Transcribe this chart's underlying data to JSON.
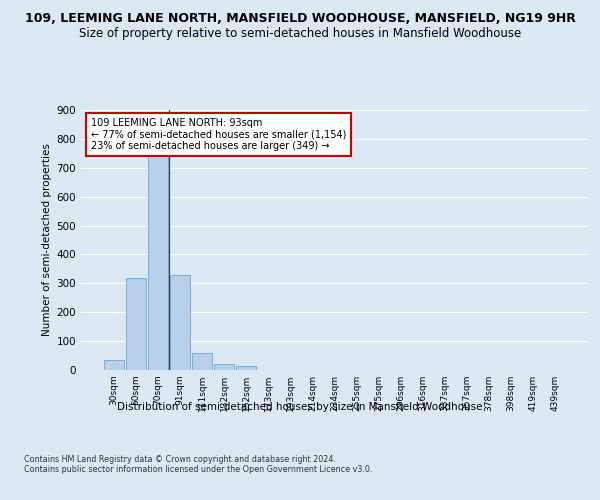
{
  "title_line1": "109, LEEMING LANE NORTH, MANSFIELD WOODHOUSE, MANSFIELD, NG19 9HR",
  "title_line2": "Size of property relative to semi-detached houses in Mansfield Woodhouse",
  "xlabel_footer": "Distribution of semi-detached houses by size in Mansfield Woodhouse",
  "ylabel": "Number of semi-detached properties",
  "footnote": "Contains HM Land Registry data © Crown copyright and database right 2024.\nContains public sector information licensed under the Open Government Licence v3.0.",
  "categories": [
    "30sqm",
    "50sqm",
    "70sqm",
    "91sqm",
    "111sqm",
    "132sqm",
    "152sqm",
    "173sqm",
    "193sqm",
    "214sqm",
    "234sqm",
    "255sqm",
    "275sqm",
    "296sqm",
    "316sqm",
    "337sqm",
    "357sqm",
    "378sqm",
    "398sqm",
    "419sqm",
    "439sqm"
  ],
  "values": [
    35,
    320,
    740,
    330,
    60,
    22,
    13,
    0,
    0,
    0,
    0,
    0,
    0,
    0,
    0,
    0,
    0,
    0,
    0,
    0,
    0
  ],
  "bar_color": "#b8d0ea",
  "bar_edge_color": "#6aaad4",
  "annotation_box_text": [
    "109 LEEMING LANE NORTH: 93sqm",
    "← 77% of semi-detached houses are smaller (1,154)",
    "23% of semi-detached houses are larger (349) →"
  ],
  "annotation_box_color": "#cc0000",
  "ylim": [
    0,
    900
  ],
  "yticks": [
    0,
    100,
    200,
    300,
    400,
    500,
    600,
    700,
    800,
    900
  ],
  "background_color": "#dce9f5",
  "grid_color": "#ffffff",
  "vline_x_index": 3,
  "title_fontsize": 9,
  "subtitle_fontsize": 8.5
}
